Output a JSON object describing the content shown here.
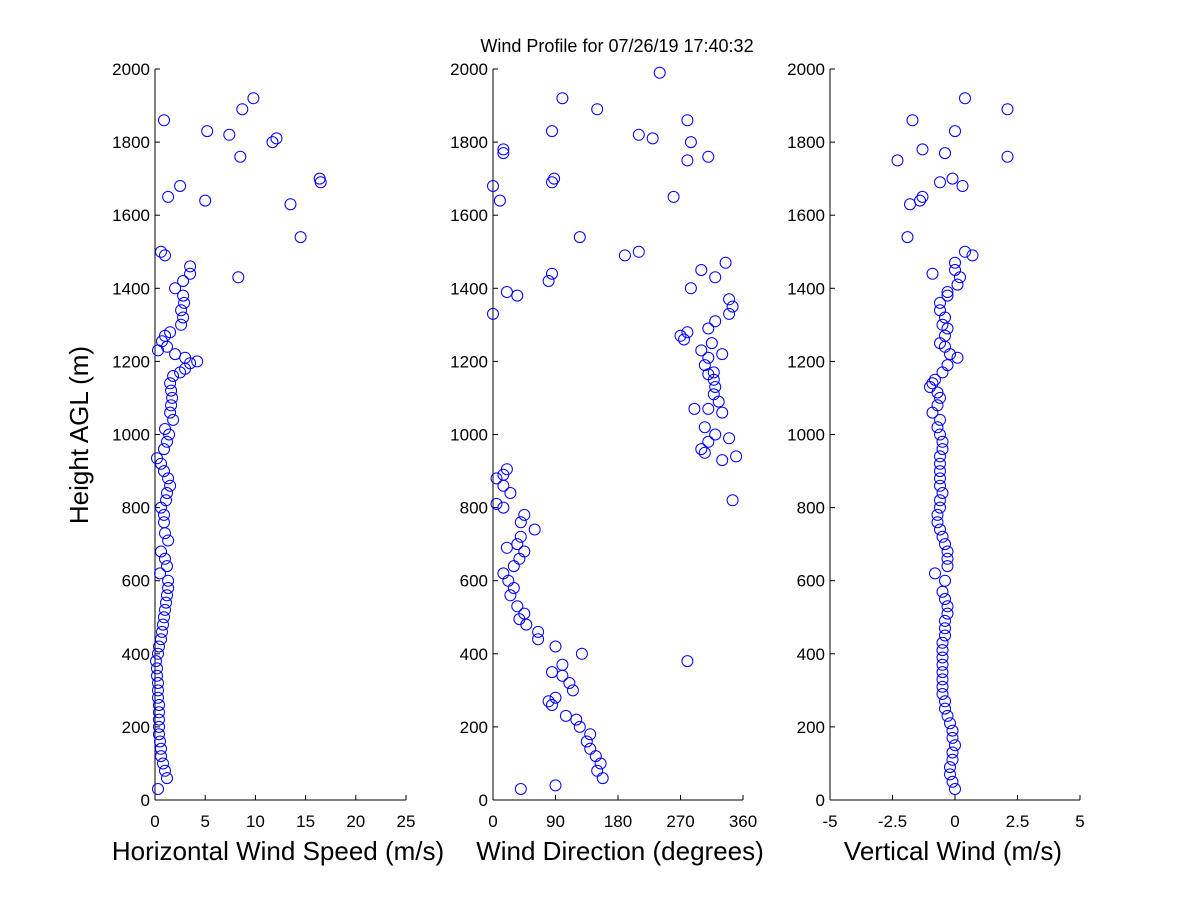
{
  "figure": {
    "title": "Wind Profile for  07/26/19 17:40:32",
    "marker_color": "#0000ff"
  },
  "chart_data": [
    {
      "type": "scatter",
      "id": "speed",
      "xlabel": "Horizontal Wind Speed (m/s)",
      "ylabel": "Height AGL (m)",
      "xlim": [
        0,
        25
      ],
      "ylim": [
        0,
        2000
      ],
      "xticks": [
        0,
        5,
        10,
        15,
        20,
        25
      ],
      "xtick_labels": [
        "0",
        "5",
        "10",
        "15",
        "20",
        "25"
      ],
      "yticks": [
        0,
        200,
        400,
        600,
        800,
        1000,
        1200,
        1400,
        1600,
        1800,
        2000
      ],
      "ytick_labels": [
        "0",
        "200",
        "400",
        "600",
        "800",
        "1000",
        "1200",
        "1400",
        "1600",
        "1800",
        "2000"
      ],
      "points": [
        [
          0.3,
          30
        ],
        [
          1.2,
          60
        ],
        [
          1.0,
          80
        ],
        [
          0.8,
          100
        ],
        [
          0.6,
          120
        ],
        [
          0.6,
          140
        ],
        [
          0.5,
          160
        ],
        [
          0.4,
          180
        ],
        [
          0.4,
          200
        ],
        [
          0.4,
          220
        ],
        [
          0.4,
          240
        ],
        [
          0.4,
          260
        ],
        [
          0.3,
          280
        ],
        [
          0.3,
          300
        ],
        [
          0.3,
          320
        ],
        [
          0.2,
          340
        ],
        [
          0.2,
          360
        ],
        [
          0.1,
          380
        ],
        [
          0.3,
          400
        ],
        [
          0.4,
          420
        ],
        [
          0.6,
          440
        ],
        [
          0.7,
          460
        ],
        [
          0.8,
          480
        ],
        [
          0.9,
          500
        ],
        [
          1.0,
          520
        ],
        [
          1.1,
          540
        ],
        [
          1.2,
          560
        ],
        [
          1.3,
          580
        ],
        [
          1.3,
          600
        ],
        [
          0.5,
          620
        ],
        [
          1.2,
          640
        ],
        [
          1.0,
          660
        ],
        [
          0.6,
          680
        ],
        [
          1.3,
          710
        ],
        [
          1.0,
          730
        ],
        [
          0.9,
          760
        ],
        [
          0.9,
          780
        ],
        [
          0.6,
          800
        ],
        [
          1.1,
          820
        ],
        [
          1.2,
          840
        ],
        [
          1.5,
          860
        ],
        [
          1.3,
          880
        ],
        [
          0.9,
          900
        ],
        [
          0.6,
          920
        ],
        [
          0.2,
          935
        ],
        [
          0.9,
          960
        ],
        [
          1.2,
          980
        ],
        [
          1.4,
          1000
        ],
        [
          1.0,
          1015
        ],
        [
          1.8,
          1040
        ],
        [
          1.5,
          1060
        ],
        [
          1.6,
          1080
        ],
        [
          1.7,
          1100
        ],
        [
          1.6,
          1120
        ],
        [
          1.5,
          1140
        ],
        [
          1.8,
          1160
        ],
        [
          2.5,
          1170
        ],
        [
          3.0,
          1180
        ],
        [
          3.5,
          1195
        ],
        [
          4.2,
          1200
        ],
        [
          3.0,
          1210
        ],
        [
          2.0,
          1220
        ],
        [
          0.3,
          1230
        ],
        [
          1.2,
          1240
        ],
        [
          0.7,
          1255
        ],
        [
          1.0,
          1270
        ],
        [
          1.5,
          1280
        ],
        [
          2.6,
          1300
        ],
        [
          2.8,
          1320
        ],
        [
          2.6,
          1340
        ],
        [
          2.9,
          1360
        ],
        [
          2.8,
          1380
        ],
        [
          2.0,
          1400
        ],
        [
          2.8,
          1420
        ],
        [
          3.5,
          1440
        ],
        [
          3.5,
          1460
        ],
        [
          1.0,
          1490
        ],
        [
          0.6,
          1500
        ],
        [
          8.3,
          1430
        ],
        [
          14.5,
          1540
        ],
        [
          5.0,
          1640
        ],
        [
          13.5,
          1630
        ],
        [
          1.3,
          1650
        ],
        [
          2.5,
          1680
        ],
        [
          16.4,
          1700
        ],
        [
          16.5,
          1690
        ],
        [
          8.5,
          1760
        ],
        [
          11.7,
          1800
        ],
        [
          12.1,
          1810
        ],
        [
          7.4,
          1820
        ],
        [
          5.2,
          1830
        ],
        [
          0.9,
          1860
        ],
        [
          8.7,
          1890
        ],
        [
          9.8,
          1920
        ]
      ]
    },
    {
      "type": "scatter",
      "id": "direction",
      "xlabel": "Wind Direction (degrees)",
      "ylabel": "",
      "xlim": [
        0,
        360
      ],
      "ylim": [
        0,
        2000
      ],
      "xticks": [
        0,
        90,
        180,
        270,
        360
      ],
      "xtick_labels": [
        "0",
        "90",
        "180",
        "270",
        "360"
      ],
      "yticks": [
        0,
        200,
        400,
        600,
        800,
        1000,
        1200,
        1400,
        1600,
        1800,
        2000
      ],
      "ytick_labels": [
        "0",
        "200",
        "400",
        "600",
        "800",
        "1000",
        "1200",
        "1400",
        "1600",
        "1800",
        "2000"
      ],
      "points": [
        [
          40,
          30
        ],
        [
          90,
          40
        ],
        [
          158,
          60
        ],
        [
          150,
          80
        ],
        [
          155,
          100
        ],
        [
          148,
          120
        ],
        [
          140,
          140
        ],
        [
          135,
          160
        ],
        [
          140,
          180
        ],
        [
          125,
          200
        ],
        [
          120,
          220
        ],
        [
          105,
          230
        ],
        [
          85,
          260
        ],
        [
          80,
          270
        ],
        [
          90,
          280
        ],
        [
          115,
          300
        ],
        [
          110,
          320
        ],
        [
          100,
          340
        ],
        [
          85,
          350
        ],
        [
          100,
          370
        ],
        [
          128,
          400
        ],
        [
          90,
          420
        ],
        [
          65,
          440
        ],
        [
          65,
          460
        ],
        [
          48,
          480
        ],
        [
          38,
          495
        ],
        [
          45,
          510
        ],
        [
          35,
          530
        ],
        [
          25,
          560
        ],
        [
          30,
          580
        ],
        [
          22,
          600
        ],
        [
          15,
          620
        ],
        [
          30,
          640
        ],
        [
          38,
          660
        ],
        [
          45,
          680
        ],
        [
          20,
          690
        ],
        [
          35,
          700
        ],
        [
          40,
          720
        ],
        [
          60,
          740
        ],
        [
          40,
          760
        ],
        [
          45,
          780
        ],
        [
          15,
          800
        ],
        [
          5,
          810
        ],
        [
          25,
          840
        ],
        [
          15,
          860
        ],
        [
          5,
          880
        ],
        [
          15,
          890
        ],
        [
          20,
          905
        ],
        [
          345,
          820
        ],
        [
          300,
          960
        ],
        [
          310,
          980
        ],
        [
          320,
          1000
        ],
        [
          305,
          1020
        ],
        [
          340,
          990
        ],
        [
          330,
          1060
        ],
        [
          310,
          1070
        ],
        [
          290,
          1070
        ],
        [
          325,
          1090
        ],
        [
          318,
          1110
        ],
        [
          320,
          1130
        ],
        [
          318,
          1150
        ],
        [
          310,
          1165
        ],
        [
          318,
          1170
        ],
        [
          305,
          1190
        ],
        [
          310,
          1210
        ],
        [
          330,
          1220
        ],
        [
          300,
          1230
        ],
        [
          315,
          1250
        ],
        [
          270,
          1270
        ],
        [
          280,
          1280
        ],
        [
          275,
          1260
        ],
        [
          310,
          1290
        ],
        [
          320,
          1310
        ],
        [
          340,
          1330
        ],
        [
          345,
          1350
        ],
        [
          340,
          1370
        ],
        [
          285,
          1400
        ],
        [
          320,
          1430
        ],
        [
          300,
          1450
        ],
        [
          335,
          1470
        ],
        [
          190,
          1490
        ],
        [
          210,
          1500
        ],
        [
          125,
          1540
        ],
        [
          10,
          1640
        ],
        [
          260,
          1650
        ],
        [
          0,
          1680
        ],
        [
          85,
          1690
        ],
        [
          88,
          1700
        ],
        [
          310,
          1760
        ],
        [
          280,
          1750
        ],
        [
          15,
          1780
        ],
        [
          15,
          1770
        ],
        [
          285,
          1800
        ],
        [
          210,
          1820
        ],
        [
          230,
          1810
        ],
        [
          85,
          1830
        ],
        [
          280,
          1860
        ],
        [
          150,
          1890
        ],
        [
          100,
          1920
        ],
        [
          240,
          1990
        ],
        [
          0,
          1330
        ],
        [
          20,
          1390
        ],
        [
          35,
          1380
        ],
        [
          80,
          1420
        ],
        [
          85,
          1440
        ],
        [
          280,
          380
        ],
        [
          350,
          940
        ],
        [
          330,
          930
        ],
        [
          305,
          950
        ]
      ]
    },
    {
      "type": "scatter",
      "id": "vertical",
      "xlabel": "Vertical Wind (m/s)",
      "ylabel": "",
      "xlim": [
        -5,
        5
      ],
      "ylim": [
        0,
        2000
      ],
      "xticks": [
        -5,
        -2.5,
        0,
        2.5,
        5
      ],
      "xtick_labels": [
        "-5",
        "-2.5",
        "0",
        "2.5",
        "5"
      ],
      "yticks": [
        0,
        200,
        400,
        600,
        800,
        1000,
        1200,
        1400,
        1600,
        1800,
        2000
      ],
      "ytick_labels": [
        "0",
        "200",
        "400",
        "600",
        "800",
        "1000",
        "1200",
        "1400",
        "1600",
        "1800",
        "2000"
      ],
      "points": [
        [
          0.0,
          30
        ],
        [
          -0.1,
          50
        ],
        [
          -0.2,
          70
        ],
        [
          -0.2,
          90
        ],
        [
          -0.1,
          110
        ],
        [
          -0.1,
          130
        ],
        [
          0.0,
          150
        ],
        [
          -0.1,
          170
        ],
        [
          -0.1,
          190
        ],
        [
          -0.2,
          210
        ],
        [
          -0.3,
          230
        ],
        [
          -0.4,
          250
        ],
        [
          -0.4,
          270
        ],
        [
          -0.5,
          290
        ],
        [
          -0.5,
          310
        ],
        [
          -0.5,
          330
        ],
        [
          -0.5,
          350
        ],
        [
          -0.5,
          370
        ],
        [
          -0.5,
          390
        ],
        [
          -0.5,
          410
        ],
        [
          -0.5,
          430
        ],
        [
          -0.4,
          450
        ],
        [
          -0.4,
          470
        ],
        [
          -0.4,
          490
        ],
        [
          -0.3,
          510
        ],
        [
          -0.3,
          530
        ],
        [
          -0.4,
          550
        ],
        [
          -0.5,
          570
        ],
        [
          -0.4,
          600
        ],
        [
          -0.8,
          620
        ],
        [
          -0.3,
          640
        ],
        [
          -0.3,
          660
        ],
        [
          -0.3,
          680
        ],
        [
          -0.4,
          700
        ],
        [
          -0.5,
          720
        ],
        [
          -0.6,
          740
        ],
        [
          -0.7,
          760
        ],
        [
          -0.7,
          780
        ],
        [
          -0.6,
          800
        ],
        [
          -0.6,
          820
        ],
        [
          -0.5,
          840
        ],
        [
          -0.6,
          860
        ],
        [
          -0.6,
          880
        ],
        [
          -0.6,
          900
        ],
        [
          -0.6,
          920
        ],
        [
          -0.6,
          940
        ],
        [
          -0.5,
          960
        ],
        [
          -0.5,
          980
        ],
        [
          -0.6,
          1000
        ],
        [
          -0.7,
          1020
        ],
        [
          -0.6,
          1040
        ],
        [
          -0.9,
          1060
        ],
        [
          -0.7,
          1080
        ],
        [
          -0.6,
          1100
        ],
        [
          -0.7,
          1115
        ],
        [
          -1.0,
          1130
        ],
        [
          -0.9,
          1140
        ],
        [
          -0.8,
          1150
        ],
        [
          -0.5,
          1170
        ],
        [
          -0.3,
          1190
        ],
        [
          0.1,
          1210
        ],
        [
          -0.2,
          1220
        ],
        [
          -0.4,
          1240
        ],
        [
          -0.6,
          1250
        ],
        [
          -0.4,
          1270
        ],
        [
          -0.3,
          1290
        ],
        [
          -0.5,
          1300
        ],
        [
          -0.4,
          1320
        ],
        [
          -0.6,
          1340
        ],
        [
          -0.6,
          1360
        ],
        [
          -0.3,
          1380
        ],
        [
          -0.3,
          1390
        ],
        [
          0.1,
          1410
        ],
        [
          0.2,
          1430
        ],
        [
          -0.9,
          1440
        ],
        [
          0.0,
          1450
        ],
        [
          0.0,
          1470
        ],
        [
          0.4,
          1500
        ],
        [
          0.7,
          1490
        ],
        [
          -1.9,
          1540
        ],
        [
          -1.8,
          1630
        ],
        [
          -1.4,
          1640
        ],
        [
          -1.3,
          1650
        ],
        [
          0.3,
          1680
        ],
        [
          -0.6,
          1690
        ],
        [
          -0.1,
          1700
        ],
        [
          -2.3,
          1750
        ],
        [
          2.1,
          1760
        ],
        [
          -0.4,
          1770
        ],
        [
          -1.3,
          1780
        ],
        [
          0.0,
          1830
        ],
        [
          -1.7,
          1860
        ],
        [
          2.1,
          1890
        ],
        [
          0.4,
          1920
        ]
      ]
    }
  ]
}
